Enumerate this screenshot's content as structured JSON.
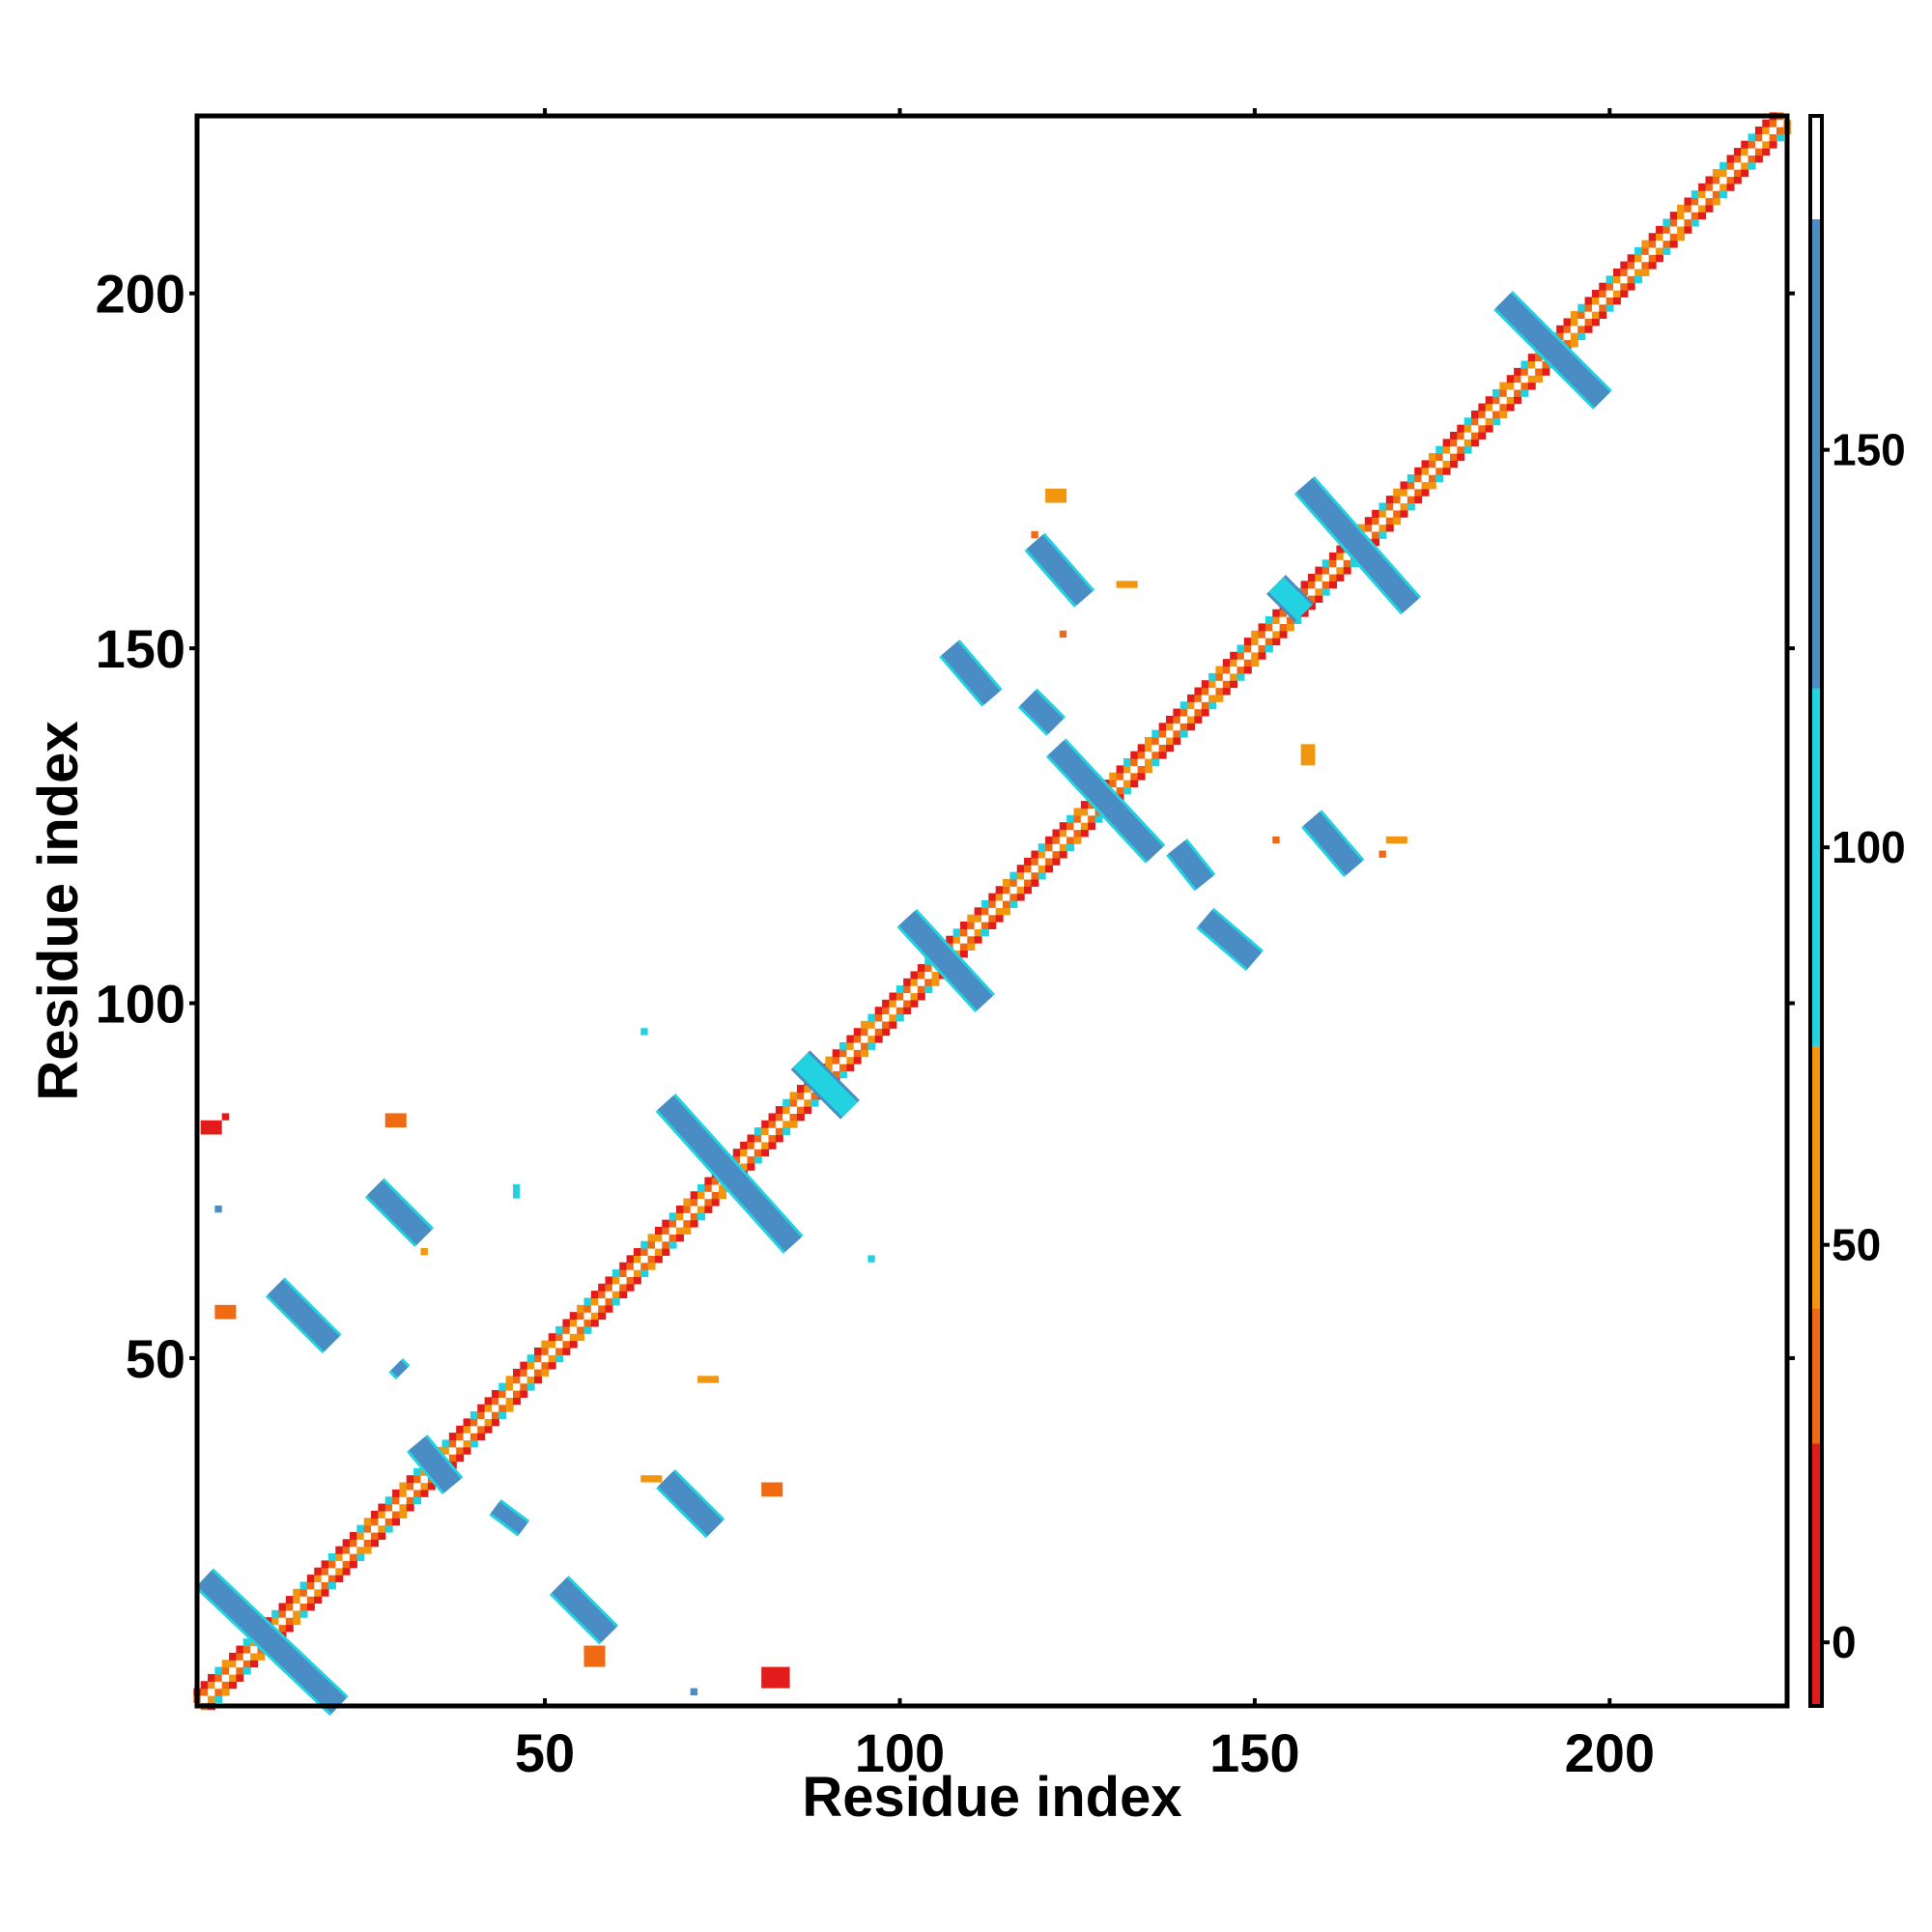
{
  "chart_data": {
    "type": "heatmap",
    "title": "",
    "xlabel": "Residue index",
    "ylabel": "Residue index",
    "xlim": [
      1,
      225
    ],
    "ylim": [
      1,
      225
    ],
    "xticks": [
      50,
      100,
      150,
      200
    ],
    "yticks": [
      50,
      100,
      150,
      200
    ],
    "colorbar": {
      "ticks": [
        0,
        50,
        100,
        150
      ],
      "range": [
        -8,
        192
      ],
      "bands": [
        {
          "from": -8,
          "to": 25,
          "color": "#e21b1b"
        },
        {
          "from": 25,
          "to": 42,
          "color": "#f06a14"
        },
        {
          "from": 42,
          "to": 75,
          "color": "#f2960f"
        },
        {
          "from": 75,
          "to": 120,
          "color": "#22d2e0"
        },
        {
          "from": 120,
          "to": 179,
          "color": "#4a8cc4"
        },
        {
          "from": 179,
          "to": 192,
          "color": "#ffffff"
        }
      ]
    },
    "diagonal_band": {
      "from": 1,
      "to": 225,
      "colors": [
        "#e21b1b",
        "#f06a14",
        "#f2960f",
        "#22d2e0"
      ]
    },
    "contact_segments": [
      {
        "x0": 2,
        "y0": 19,
        "x1": 21,
        "y1": 1,
        "w": 3,
        "color": "#4a8cc4",
        "edge": "#22d2e0"
      },
      {
        "x0": 12,
        "y0": 60,
        "x1": 20,
        "y1": 52,
        "w": 3,
        "color": "#4a8cc4",
        "edge": "#22d2e0"
      },
      {
        "x0": 26,
        "y0": 74,
        "x1": 33,
        "y1": 67,
        "w": 3,
        "color": "#4a8cc4",
        "edge": "#22d2e0"
      },
      {
        "x0": 32,
        "y0": 38,
        "x1": 37,
        "y1": 32,
        "w": 3,
        "color": "#4a8cc4",
        "edge": "#22d2e0"
      },
      {
        "x0": 29,
        "y0": 49,
        "x1": 30,
        "y1": 48,
        "w": 2,
        "color": "#4a8cc4",
        "edge": "#22d2e0"
      },
      {
        "x0": 43,
        "y0": 29,
        "x1": 47,
        "y1": 26,
        "w": 2,
        "color": "#4a8cc4",
        "edge": "#22d2e0"
      },
      {
        "x0": 52,
        "y0": 18,
        "x1": 59,
        "y1": 11,
        "w": 3,
        "color": "#4a8cc4",
        "edge": "#22d2e0"
      },
      {
        "x0": 67,
        "y0": 33,
        "x1": 74,
        "y1": 26,
        "w": 3,
        "color": "#4a8cc4",
        "edge": "#22d2e0"
      },
      {
        "x0": 67,
        "y0": 86,
        "x1": 85,
        "y1": 66,
        "w": 3,
        "color": "#4a8cc4",
        "edge": "#22d2e0"
      },
      {
        "x0": 86,
        "y0": 92,
        "x1": 93,
        "y1": 85,
        "w": 3,
        "color": "#22d2e0",
        "edge": "#4a8cc4"
      },
      {
        "x0": 101,
        "y0": 112,
        "x1": 112,
        "y1": 100,
        "w": 3,
        "color": "#4a8cc4",
        "edge": "#22d2e0"
      },
      {
        "x0": 107,
        "y0": 150,
        "x1": 113,
        "y1": 143,
        "w": 3,
        "color": "#4a8cc4",
        "edge": "#22d2e0"
      },
      {
        "x0": 118,
        "y0": 143,
        "x1": 122,
        "y1": 139,
        "w": 3,
        "color": "#4a8cc4",
        "edge": "#22d2e0"
      },
      {
        "x0": 122,
        "y0": 136,
        "x1": 136,
        "y1": 121,
        "w": 3,
        "color": "#4a8cc4",
        "edge": "#22d2e0"
      },
      {
        "x0": 139,
        "y0": 122,
        "x1": 143,
        "y1": 117,
        "w": 3,
        "color": "#4a8cc4",
        "edge": "#22d2e0"
      },
      {
        "x0": 119,
        "y0": 165,
        "x1": 126,
        "y1": 157,
        "w": 3,
        "color": "#4a8cc4",
        "edge": "#22d2e0"
      },
      {
        "x0": 143,
        "y0": 112,
        "x1": 150,
        "y1": 106,
        "w": 3,
        "color": "#4a8cc4",
        "edge": "#22d2e0"
      },
      {
        "x0": 158,
        "y0": 126,
        "x1": 164,
        "y1": 119,
        "w": 3,
        "color": "#4a8cc4",
        "edge": "#22d2e0"
      },
      {
        "x0": 153,
        "y0": 159,
        "x1": 157,
        "y1": 155,
        "w": 3,
        "color": "#22d2e0",
        "edge": "#4a8cc4"
      },
      {
        "x0": 157,
        "y0": 173,
        "x1": 172,
        "y1": 156,
        "w": 3,
        "color": "#4a8cc4",
        "edge": "#22d2e0"
      },
      {
        "x0": 185,
        "y0": 199,
        "x1": 199,
        "y1": 185,
        "w": 3,
        "color": "#4a8cc4",
        "edge": "#22d2e0"
      }
    ],
    "contact_dots": [
      {
        "x": 2,
        "y": 82,
        "w": 3,
        "h": 2,
        "color": "#e21b1b"
      },
      {
        "x": 5,
        "y": 84,
        "w": 1,
        "h": 1,
        "color": "#e21b1b"
      },
      {
        "x": 4,
        "y": 71,
        "w": 1,
        "h": 1,
        "color": "#4a8cc4"
      },
      {
        "x": 28,
        "y": 83,
        "w": 3,
        "h": 2,
        "color": "#f06a14"
      },
      {
        "x": 4,
        "y": 56,
        "w": 3,
        "h": 2,
        "color": "#f06a14"
      },
      {
        "x": 46,
        "y": 73,
        "w": 1,
        "h": 2,
        "color": "#22d2e0"
      },
      {
        "x": 33,
        "y": 65,
        "w": 1,
        "h": 1,
        "color": "#f2960f"
      },
      {
        "x": 64,
        "y": 96,
        "w": 1,
        "h": 1,
        "color": "#22d2e0"
      },
      {
        "x": 96,
        "y": 64,
        "w": 1,
        "h": 1,
        "color": "#22d2e0"
      },
      {
        "x": 72,
        "y": 47,
        "w": 3,
        "h": 1,
        "color": "#f2960f"
      },
      {
        "x": 81,
        "y": 31,
        "w": 3,
        "h": 2,
        "color": "#f06a14"
      },
      {
        "x": 56,
        "y": 7,
        "w": 3,
        "h": 3,
        "color": "#f06a14"
      },
      {
        "x": 71,
        "y": 3,
        "w": 1,
        "h": 1,
        "color": "#4a8cc4"
      },
      {
        "x": 81,
        "y": 4,
        "w": 4,
        "h": 3,
        "color": "#e21b1b"
      },
      {
        "x": 64,
        "y": 33,
        "w": 3,
        "h": 1,
        "color": "#f2960f"
      },
      {
        "x": 121,
        "y": 171,
        "w": 3,
        "h": 2,
        "color": "#f2960f"
      },
      {
        "x": 131,
        "y": 159,
        "w": 3,
        "h": 1,
        "color": "#f2960f"
      },
      {
        "x": 119,
        "y": 166,
        "w": 1,
        "h": 1,
        "color": "#f06a14"
      },
      {
        "x": 123,
        "y": 152,
        "w": 1,
        "h": 1,
        "color": "#f06a14"
      },
      {
        "x": 157,
        "y": 134,
        "w": 2,
        "h": 3,
        "color": "#f2960f"
      },
      {
        "x": 153,
        "y": 123,
        "w": 1,
        "h": 1,
        "color": "#f06a14"
      },
      {
        "x": 169,
        "y": 123,
        "w": 3,
        "h": 1,
        "color": "#f2960f"
      },
      {
        "x": 168,
        "y": 121,
        "w": 1,
        "h": 1,
        "color": "#f06a14"
      }
    ]
  }
}
